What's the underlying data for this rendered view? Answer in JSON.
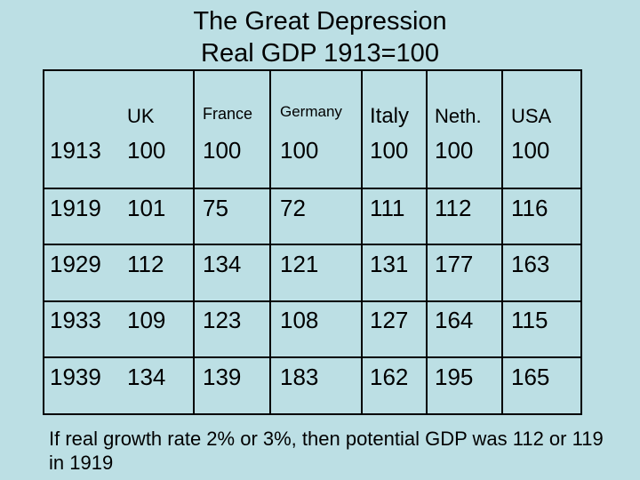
{
  "title": {
    "line1": "The Great Depression",
    "line2": "Real GDP 1913=100"
  },
  "table": {
    "headers": [
      "UK",
      "France",
      "Germany",
      "Italy",
      "Neth.",
      "USA"
    ],
    "rows": [
      {
        "year": "1913",
        "values": [
          "100",
          "100",
          "100",
          "100",
          "100",
          "100"
        ]
      },
      {
        "year": "1919",
        "values": [
          "101",
          "75",
          "72",
          "111",
          "112",
          "116"
        ]
      },
      {
        "year": "1929",
        "values": [
          "112",
          "134",
          "121",
          "131",
          "177",
          "163"
        ]
      },
      {
        "year": "1933",
        "values": [
          "109",
          "123",
          "108",
          "127",
          "164",
          "115"
        ]
      },
      {
        "year": "1939",
        "values": [
          "134",
          "139",
          "183",
          "162",
          "195",
          "165"
        ]
      }
    ]
  },
  "note": "If real growth rate 2% or 3%, then potential GDP was 112 or 119 in 1919"
}
